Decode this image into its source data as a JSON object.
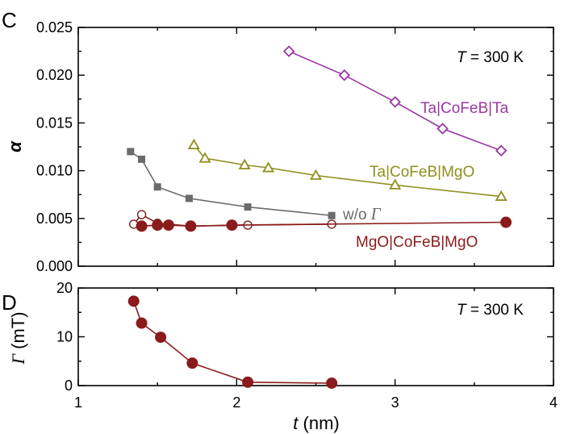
{
  "chart_data": [
    {
      "panel": "C",
      "type": "line",
      "xlim": [
        1,
        4
      ],
      "ylim": [
        0,
        0.025
      ],
      "ylabel": "α",
      "yticks": [
        "0.000",
        "0.005",
        "0.010",
        "0.015",
        "0.020",
        "0.025"
      ],
      "annotation": {
        "var": "T",
        "rest": " = 300 K"
      },
      "series": [
        {
          "name": "Ta|CoFeB|Ta",
          "color": "#9b37a3",
          "marker": "diamond-open",
          "x": [
            2.33,
            2.68,
            3.0,
            3.3,
            3.67
          ],
          "y": [
            0.0225,
            0.02,
            0.0172,
            0.0144,
            0.0121
          ]
        },
        {
          "name": "Ta|CoFeB|MgO",
          "color": "#8f8f1f",
          "marker": "triangle-open",
          "x": [
            1.73,
            1.8,
            2.05,
            2.2,
            2.5,
            3.0,
            3.67
          ],
          "y": [
            0.0127,
            0.0113,
            0.0106,
            0.0103,
            0.0095,
            0.0085,
            0.0073
          ]
        },
        {
          "name": "w/o",
          "name_var": "Γ",
          "color": "#6b6b6b",
          "marker": "square-filled",
          "x": [
            1.33,
            1.4,
            1.5,
            1.7,
            2.07,
            2.6
          ],
          "y": [
            0.012,
            0.0112,
            0.0083,
            0.0071,
            0.0062,
            0.0053
          ]
        },
        {
          "name": "",
          "color": "#7a1e1e",
          "marker": "circle-open",
          "x": [
            1.35,
            1.4,
            1.5,
            1.57,
            1.71,
            2.07,
            2.6
          ],
          "y": [
            0.0044,
            0.0054,
            0.0045,
            0.0044,
            0.0042,
            0.0043,
            0.0044
          ]
        },
        {
          "name": "MgO|CoFeB|MgO",
          "color": "#8b1a1a",
          "marker": "circle-filled",
          "x": [
            1.4,
            1.5,
            1.57,
            1.71,
            1.97,
            3.7
          ],
          "y": [
            0.0042,
            0.0043,
            0.0043,
            0.0042,
            0.0043,
            0.0046
          ]
        }
      ]
    },
    {
      "panel": "D",
      "type": "line",
      "xlim": [
        1,
        4
      ],
      "ylim": [
        0,
        20
      ],
      "xlabel_var": "t",
      "xlabel": " (nm)",
      "ylabel_var": "Γ",
      "ylabel": " (mT)",
      "xticks": [
        "1",
        "2",
        "3",
        "4"
      ],
      "yticks": [
        "0",
        "10",
        "20"
      ],
      "annotation": {
        "var": "T",
        "rest": " = 300 K"
      },
      "series": [
        {
          "name": "",
          "color": "#8b1a1a",
          "marker": "circle-filled",
          "x": [
            1.35,
            1.4,
            1.52,
            1.72,
            2.07,
            2.6
          ],
          "y": [
            17.3,
            12.8,
            9.9,
            4.6,
            0.7,
            0.5
          ]
        }
      ]
    }
  ]
}
